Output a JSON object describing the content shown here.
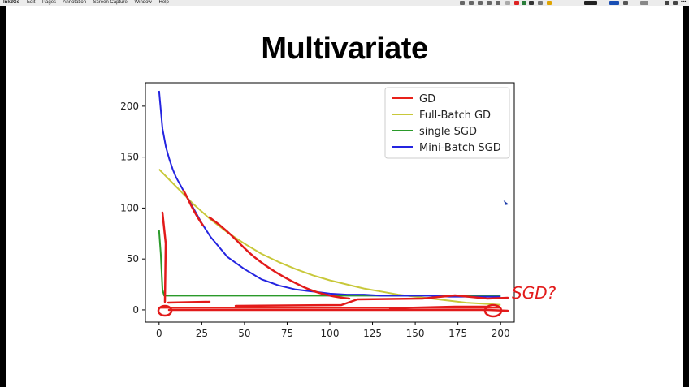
{
  "menubar": {
    "app_name": "Ink2Go",
    "menus": [
      "Edit",
      "Pages",
      "Annotation",
      "Screen Capture",
      "Window",
      "Help"
    ]
  },
  "slide": {
    "title": "Multivariate"
  },
  "annotation": {
    "text": "SGD?",
    "ink_color": "#e21a1a"
  },
  "chart_data": {
    "type": "line",
    "title": "",
    "xlabel": "",
    "ylabel": "",
    "xlim": [
      -8,
      208
    ],
    "ylim": [
      -12,
      223
    ],
    "xticks": [
      0,
      25,
      50,
      75,
      100,
      125,
      150,
      175,
      200
    ],
    "yticks": [
      0,
      50,
      100,
      150,
      200
    ],
    "grid": false,
    "legend_position": "top-right",
    "series": [
      {
        "name": "GD",
        "color": "#e8211a",
        "x": [
          0,
          200
        ],
        "y": [
          2,
          2
        ]
      },
      {
        "name": "Full-Batch GD",
        "color": "#c8c83a",
        "x": [
          0,
          10,
          20,
          30,
          40,
          50,
          60,
          70,
          80,
          90,
          100,
          110,
          120,
          130,
          140,
          150,
          160,
          170,
          180,
          190,
          200
        ],
        "y": [
          138,
          121,
          104,
          89,
          76,
          65,
          55,
          47,
          40,
          34,
          29,
          25,
          21,
          18,
          15,
          13,
          11,
          9,
          7,
          6,
          5
        ]
      },
      {
        "name": "single SGD",
        "color": "#2a9a2a",
        "x": [
          0,
          1,
          2,
          3,
          10,
          50,
          100,
          150,
          200
        ],
        "y": [
          78,
          55,
          20,
          14,
          14,
          14,
          14,
          14,
          14
        ]
      },
      {
        "name": "Mini-Batch SGD",
        "color": "#2424e0",
        "x": [
          0,
          2,
          4,
          6,
          8,
          10,
          15,
          20,
          25,
          30,
          35,
          40,
          45,
          50,
          55,
          60,
          65,
          70,
          75,
          80,
          90,
          100,
          110,
          120,
          130,
          140,
          150,
          160,
          170,
          180,
          190,
          200
        ],
        "y": [
          215,
          178,
          160,
          148,
          138,
          130,
          115,
          100,
          85,
          72,
          62,
          52,
          46,
          40,
          35,
          30,
          27,
          24,
          22,
          20,
          18,
          16,
          15,
          15,
          14,
          14,
          14,
          14,
          13,
          13,
          13,
          13
        ]
      }
    ]
  }
}
